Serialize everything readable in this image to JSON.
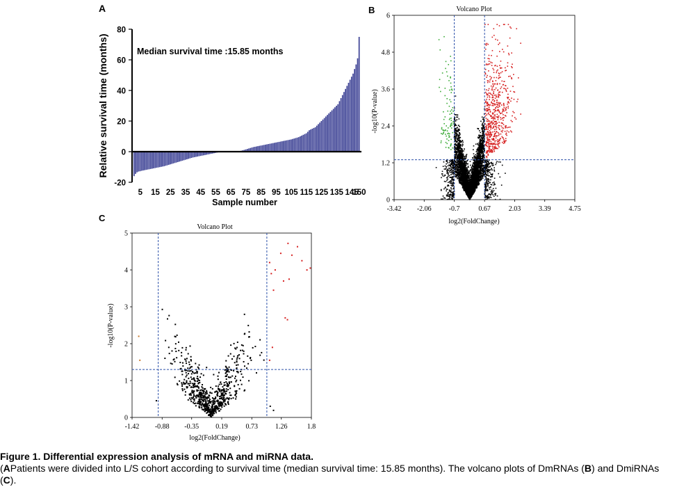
{
  "panels": {
    "A": {
      "letter": "A",
      "annotation": "Median survival time :15.85 months",
      "xlabel": "Sample number",
      "ylabel": "Relative survival time (months)",
      "yticks": [
        "80",
        "60",
        "40",
        "20",
        "0",
        "-20"
      ],
      "xticks": [
        "5",
        "15",
        "25",
        "35",
        "45",
        "55",
        "65",
        "75",
        "85",
        "95",
        "105",
        "115",
        "125",
        "135",
        "145",
        "150"
      ]
    },
    "B": {
      "letter": "B",
      "title": "Volcano Plot",
      "xlabel": "log2(FoldChange)",
      "ylabel": "-log10(P-value)",
      "xticks": [
        "-3.42",
        "-2.06",
        "-0.7",
        "0.67",
        "2.03",
        "3.39",
        "4.75"
      ],
      "yticks": [
        "6",
        "4.8",
        "3.6",
        "2.4",
        "1.2",
        "0"
      ]
    },
    "C": {
      "letter": "C",
      "title": "Volcano Plot",
      "xlabel": "log2(FoldChange)",
      "ylabel": "-log10(P-value)",
      "xticks": [
        "-1.42",
        "-0.88",
        "-0.35",
        "0.19",
        "0.73",
        "1.26",
        "1.8"
      ],
      "yticks": [
        "5",
        "4",
        "3",
        "2",
        "1",
        "0"
      ]
    }
  },
  "caption": {
    "title": "Figure 1. Differential expression analysis of mRNA and miRNA data.",
    "part1_letter": "A",
    "part1_text": "Patients were divided into L/S cohort according to survival time (median survival time: 15.85 months). The volcano plots of DmRNAs (",
    "part2_letter": "B",
    "part2_text": ") and DmiRNAs (",
    "part3_letter": "C",
    "part3_text": ")."
  },
  "colors": {
    "bar": "#3a3f93",
    "up": "#d62020",
    "down": "#3aaa35",
    "nonsig": "#000000",
    "threshold": "#2a4fa8"
  },
  "chart_data": [
    {
      "type": "bar",
      "panel": "A",
      "xlabel": "Sample number",
      "ylabel": "Relative survival time (months)",
      "ylim": [
        -20,
        80
      ],
      "xlim": [
        0,
        150
      ],
      "annotation": "Median survival time :15.85 months",
      "n_samples": 150,
      "values_sorted_ascending": [
        -16,
        -14.5,
        -13.5,
        -13,
        -12.8,
        -12.5,
        -12.3,
        -12.1,
        -11.9,
        -11.7,
        -11.5,
        -11.3,
        -11.1,
        -10.9,
        -10.7,
        -10.5,
        -10.3,
        -10.1,
        -9.9,
        -9.7,
        -9.5,
        -9.2,
        -8.9,
        -8.6,
        -8.3,
        -8,
        -7.7,
        -7.4,
        -7.1,
        -6.8,
        -6.5,
        -6.2,
        -5.9,
        -5.6,
        -5.3,
        -5,
        -4.7,
        -4.4,
        -4.1,
        -3.8,
        -3.6,
        -3.4,
        -3.2,
        -3,
        -2.8,
        -2.6,
        -2.4,
        -2.2,
        -2,
        -1.8,
        -1.6,
        -1.4,
        -1.2,
        -1,
        -0.8,
        -0.6,
        -0.4,
        -0.2,
        0,
        0,
        0,
        0,
        0,
        0,
        0,
        0,
        0,
        0,
        0,
        0,
        0.3,
        0.6,
        0.9,
        1.2,
        1.5,
        1.8,
        2.1,
        2.4,
        2.7,
        3,
        3.2,
        3.4,
        3.6,
        3.8,
        4,
        4.2,
        4.4,
        4.6,
        4.8,
        5,
        5.2,
        5.4,
        5.6,
        5.8,
        6,
        6.2,
        6.4,
        6.6,
        6.8,
        7,
        7.2,
        7.4,
        7.6,
        7.8,
        8,
        8.3,
        8.6,
        8.9,
        9.2,
        9.5,
        10,
        10.5,
        11,
        11.5,
        12,
        13,
        14,
        14.5,
        15,
        15.5,
        16,
        17,
        18,
        19,
        20,
        21,
        22,
        23,
        24,
        25,
        26,
        27,
        28,
        29,
        30,
        31,
        33,
        35,
        37,
        39,
        41,
        43,
        45,
        47,
        49,
        51,
        54,
        57,
        61,
        75
      ]
    },
    {
      "type": "scatter",
      "panel": "B",
      "title": "Volcano Plot",
      "xlabel": "log2(FoldChange)",
      "ylabel": "-log10(P-value)",
      "xlim": [
        -3.42,
        4.75
      ],
      "ylim": [
        0,
        6
      ],
      "thresholds": {
        "x": [
          -0.7,
          0.67
        ],
        "y": 1.3
      },
      "categories": {
        "up": "red",
        "down": "green",
        "not_significant": "black"
      },
      "approx_point_counts": {
        "up": 620,
        "down": 95,
        "not_significant": 5200
      }
    },
    {
      "type": "scatter",
      "panel": "C",
      "title": "Volcano Plot",
      "xlabel": "log2(FoldChange)",
      "ylabel": "-log10(P-value)",
      "xlim": [
        -1.42,
        1.8
      ],
      "ylim": [
        0,
        5
      ],
      "thresholds": {
        "x": [
          -0.95,
          1.0
        ],
        "y": 1.3
      },
      "categories": {
        "up": "red",
        "down": "orange",
        "not_significant": "black"
      },
      "approx_point_counts": {
        "up": 18,
        "down": 2,
        "not_significant": 750
      },
      "up_points": [
        [
          1.38,
          4.72
        ],
        [
          1.55,
          4.63
        ],
        [
          1.25,
          4.45
        ],
        [
          1.45,
          4.4
        ],
        [
          1.63,
          4.25
        ],
        [
          1.05,
          4.2
        ],
        [
          1.78,
          4.05
        ],
        [
          1.72,
          4.0
        ],
        [
          1.15,
          4.0
        ],
        [
          1.08,
          3.9
        ],
        [
          1.4,
          3.75
        ],
        [
          1.3,
          3.7
        ],
        [
          1.12,
          3.45
        ],
        [
          1.33,
          2.7
        ],
        [
          1.37,
          2.65
        ],
        [
          1.1,
          1.9
        ],
        [
          1.05,
          1.55
        ]
      ],
      "down_points": [
        [
          -1.3,
          2.2
        ],
        [
          -1.28,
          1.55
        ]
      ]
    }
  ]
}
